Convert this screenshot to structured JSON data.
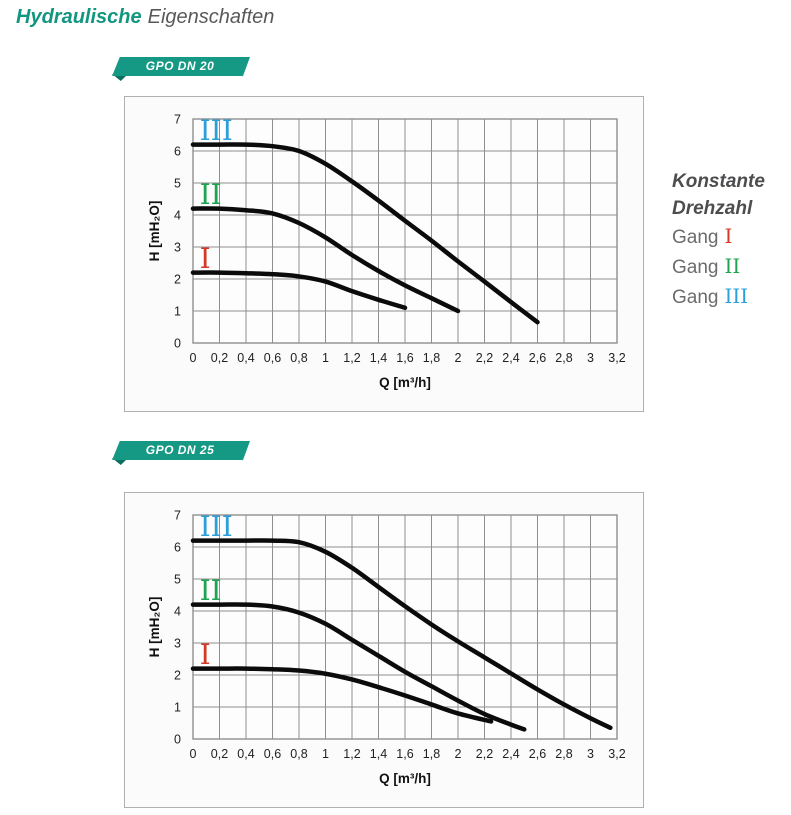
{
  "page": {
    "title_bold": "Hydraulische",
    "title_light": "Eigenschaften"
  },
  "colors": {
    "accent_teal": "#12967F",
    "badge_teal": "#159985",
    "badge_fold": "#0E6F60",
    "grid": "#8f8f8f",
    "plot_bg": "#fdfdfd",
    "curve": "#0b0b0b",
    "tick_text": "#222222",
    "gang_I": "#d13a26",
    "gang_II": "#1ea351",
    "gang_III": "#2d9fd8"
  },
  "legend": {
    "heading_line1": "Konstante",
    "heading_line2": "Drehzahl",
    "items": [
      {
        "label": "Gang",
        "numeral": "I",
        "color": "#d13a26"
      },
      {
        "label": "Gang",
        "numeral": "II",
        "color": "#1ea351"
      },
      {
        "label": "Gang",
        "numeral": "III",
        "color": "#2d9fd8"
      }
    ]
  },
  "chart_data": [
    {
      "type": "line",
      "title": "GPO DN 20",
      "xlabel": "Q [m³/h]",
      "ylabel": "H [mH₂O]",
      "xlim": [
        0,
        3.2
      ],
      "ylim": [
        0,
        7
      ],
      "x_tick_step": 0.2,
      "y_tick_step": 1,
      "x_tick_labels": [
        "0",
        "0,2",
        "0,4",
        "0,6",
        "0,8",
        "1",
        "1,2",
        "1,4",
        "1,6",
        "1,8",
        "2",
        "2,2",
        "2,4",
        "2,6",
        "2,8",
        "3",
        "3,2"
      ],
      "y_tick_labels": [
        "0",
        "1",
        "2",
        "3",
        "4",
        "5",
        "6",
        "7"
      ],
      "grid": true,
      "legend_position": "right-outside",
      "series": [
        {
          "name": "I",
          "label_color": "#d13a26",
          "points": [
            [
              0,
              2.2
            ],
            [
              0.2,
              2.2
            ],
            [
              0.4,
              2.18
            ],
            [
              0.6,
              2.15
            ],
            [
              0.8,
              2.08
            ],
            [
              1.0,
              1.92
            ],
            [
              1.2,
              1.62
            ],
            [
              1.4,
              1.35
            ],
            [
              1.6,
              1.1
            ]
          ]
        },
        {
          "name": "II",
          "label_color": "#1ea351",
          "points": [
            [
              0,
              4.2
            ],
            [
              0.2,
              4.2
            ],
            [
              0.4,
              4.15
            ],
            [
              0.6,
              4.05
            ],
            [
              0.8,
              3.75
            ],
            [
              1.0,
              3.3
            ],
            [
              1.2,
              2.75
            ],
            [
              1.4,
              2.25
            ],
            [
              1.6,
              1.8
            ],
            [
              1.8,
              1.4
            ],
            [
              2.0,
              1.0
            ]
          ]
        },
        {
          "name": "III",
          "label_color": "#2d9fd8",
          "points": [
            [
              0,
              6.2
            ],
            [
              0.2,
              6.2
            ],
            [
              0.4,
              6.2
            ],
            [
              0.6,
              6.15
            ],
            [
              0.8,
              6.0
            ],
            [
              1.0,
              5.6
            ],
            [
              1.2,
              5.05
            ],
            [
              1.4,
              4.45
            ],
            [
              1.6,
              3.82
            ],
            [
              1.8,
              3.2
            ],
            [
              2.0,
              2.55
            ],
            [
              2.2,
              1.92
            ],
            [
              2.4,
              1.28
            ],
            [
              2.6,
              0.65
            ]
          ]
        }
      ]
    },
    {
      "type": "line",
      "title": "GPO DN 25",
      "xlabel": "Q [m³/h]",
      "ylabel": "H [mH₂O]",
      "xlim": [
        0,
        3.2
      ],
      "ylim": [
        0,
        7
      ],
      "x_tick_step": 0.2,
      "y_tick_step": 1,
      "x_tick_labels": [
        "0",
        "0,2",
        "0,4",
        "0,6",
        "0,8",
        "1",
        "1,2",
        "1,4",
        "1,6",
        "1,8",
        "2",
        "2,2",
        "2,4",
        "2,6",
        "2,8",
        "3",
        "3,2"
      ],
      "y_tick_labels": [
        "0",
        "1",
        "2",
        "3",
        "4",
        "5",
        "6",
        "7"
      ],
      "grid": true,
      "legend_position": "right-outside",
      "series": [
        {
          "name": "I",
          "label_color": "#d13a26",
          "points": [
            [
              0,
              2.2
            ],
            [
              0.2,
              2.2
            ],
            [
              0.4,
              2.2
            ],
            [
              0.6,
              2.18
            ],
            [
              0.8,
              2.14
            ],
            [
              1.0,
              2.04
            ],
            [
              1.2,
              1.86
            ],
            [
              1.4,
              1.62
            ],
            [
              1.6,
              1.36
            ],
            [
              1.8,
              1.08
            ],
            [
              2.0,
              0.8
            ],
            [
              2.25,
              0.55
            ]
          ]
        },
        {
          "name": "II",
          "label_color": "#1ea351",
          "points": [
            [
              0,
              4.2
            ],
            [
              0.2,
              4.2
            ],
            [
              0.4,
              4.2
            ],
            [
              0.6,
              4.14
            ],
            [
              0.8,
              3.95
            ],
            [
              1.0,
              3.6
            ],
            [
              1.2,
              3.1
            ],
            [
              1.4,
              2.6
            ],
            [
              1.6,
              2.1
            ],
            [
              1.8,
              1.65
            ],
            [
              2.0,
              1.2
            ],
            [
              2.2,
              0.78
            ],
            [
              2.4,
              0.45
            ],
            [
              2.5,
              0.3
            ]
          ]
        },
        {
          "name": "III",
          "label_color": "#2d9fd8",
          "points": [
            [
              0,
              6.2
            ],
            [
              0.2,
              6.2
            ],
            [
              0.4,
              6.2
            ],
            [
              0.6,
              6.2
            ],
            [
              0.8,
              6.15
            ],
            [
              1.0,
              5.85
            ],
            [
              1.2,
              5.35
            ],
            [
              1.4,
              4.75
            ],
            [
              1.6,
              4.15
            ],
            [
              1.8,
              3.58
            ],
            [
              2.0,
              3.05
            ],
            [
              2.2,
              2.55
            ],
            [
              2.4,
              2.05
            ],
            [
              2.6,
              1.55
            ],
            [
              2.8,
              1.08
            ],
            [
              3.0,
              0.65
            ],
            [
              3.15,
              0.35
            ]
          ]
        }
      ]
    }
  ]
}
